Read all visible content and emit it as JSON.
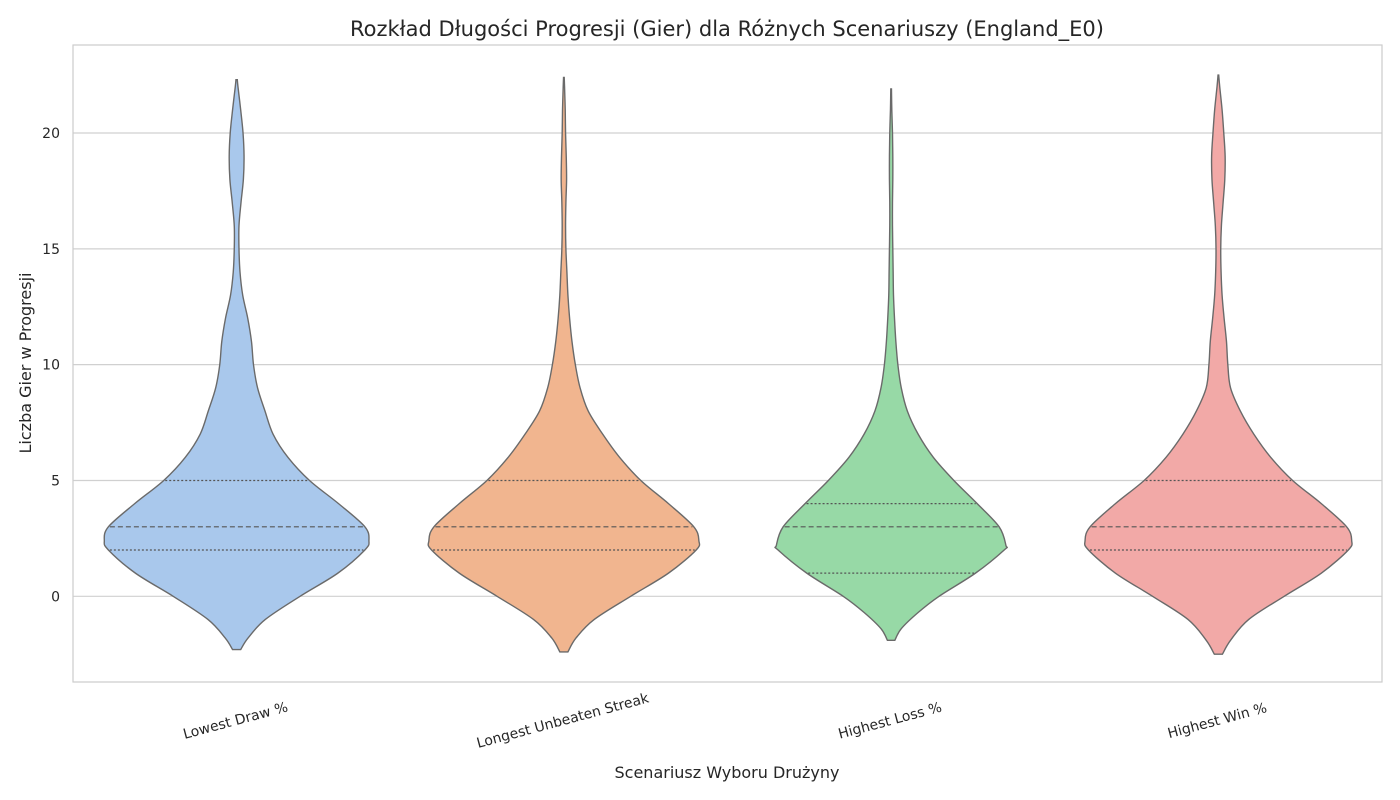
{
  "chart_data": {
    "type": "violin",
    "title": "Rozkład Długości Progresji (Gier) dla Różnych Scenariuszy (England_E0)",
    "xlabel": "Scenariusz Wyboru Drużyny",
    "ylabel": "Liczba Gier w Progresji",
    "ylim": [
      -3.7,
      23.8
    ],
    "yticks": [
      0,
      5,
      10,
      15,
      20
    ],
    "grid": "horizontal",
    "categories": [
      "Lowest Draw %",
      "Longest Unbeaten Streak",
      "Highest Loss %",
      "Highest Win %"
    ],
    "colors": [
      "#a9c8ec",
      "#f1b58f",
      "#97d9a6",
      "#f2a9a7"
    ],
    "series": [
      {
        "category": "Lowest Draw %",
        "min": -2.3,
        "max": 22.3,
        "q1": 2,
        "median": 3,
        "q3": 5,
        "density": [
          [
            -2.3,
            0.12
          ],
          [
            -1.8,
            0.34
          ],
          [
            -1.0,
            0.85
          ],
          [
            0,
            1.88
          ],
          [
            1,
            3.0
          ],
          [
            2,
            3.8
          ],
          [
            2.4,
            3.92
          ],
          [
            3,
            3.8
          ],
          [
            4,
            3.02
          ],
          [
            5,
            2.16
          ],
          [
            6,
            1.52
          ],
          [
            7,
            1.08
          ],
          [
            8,
            0.84
          ],
          [
            9,
            0.62
          ],
          [
            10,
            0.5
          ],
          [
            11,
            0.44
          ],
          [
            12,
            0.33
          ],
          [
            13,
            0.18
          ],
          [
            14,
            0.1
          ],
          [
            15,
            0.07
          ],
          [
            16,
            0.07
          ],
          [
            17,
            0.13
          ],
          [
            18,
            0.2
          ],
          [
            19,
            0.22
          ],
          [
            20,
            0.19
          ],
          [
            21,
            0.12
          ],
          [
            22,
            0.04
          ],
          [
            22.3,
            0.02
          ]
        ]
      },
      {
        "category": "Longest Unbeaten Streak",
        "min": -2.4,
        "max": 22.4,
        "q1": 2,
        "median": 3,
        "q3": 5,
        "density": [
          [
            -2.4,
            0.12
          ],
          [
            -1.8,
            0.36
          ],
          [
            -1.0,
            0.9
          ],
          [
            0,
            1.98
          ],
          [
            1,
            3.1
          ],
          [
            2,
            3.92
          ],
          [
            2.4,
            4.0
          ],
          [
            3,
            3.85
          ],
          [
            4,
            3.1
          ],
          [
            5,
            2.28
          ],
          [
            6,
            1.65
          ],
          [
            7,
            1.15
          ],
          [
            8,
            0.72
          ],
          [
            9,
            0.48
          ],
          [
            10,
            0.34
          ],
          [
            11,
            0.24
          ],
          [
            12,
            0.17
          ],
          [
            13,
            0.12
          ],
          [
            14,
            0.09
          ],
          [
            15,
            0.06
          ],
          [
            16,
            0.05
          ],
          [
            17,
            0.06
          ],
          [
            18,
            0.08
          ],
          [
            19,
            0.07
          ],
          [
            20,
            0.05
          ],
          [
            21,
            0.04
          ],
          [
            22,
            0.02
          ],
          [
            22.4,
            0.01
          ]
        ]
      },
      {
        "category": "Highest Loss %",
        "min": -1.9,
        "max": 21.9,
        "q1": 1,
        "median": 3,
        "q3": 4,
        "density": [
          [
            -1.9,
            0.11
          ],
          [
            -1.4,
            0.3
          ],
          [
            -0.7,
            0.8
          ],
          [
            0,
            1.42
          ],
          [
            1,
            2.5
          ],
          [
            2,
            3.35
          ],
          [
            2.2,
            3.4
          ],
          [
            3,
            3.2
          ],
          [
            4,
            2.55
          ],
          [
            5,
            1.86
          ],
          [
            6,
            1.25
          ],
          [
            7,
            0.8
          ],
          [
            8,
            0.48
          ],
          [
            9,
            0.3
          ],
          [
            10,
            0.2
          ],
          [
            11,
            0.14
          ],
          [
            12,
            0.1
          ],
          [
            13,
            0.07
          ],
          [
            14,
            0.06
          ],
          [
            15,
            0.05
          ],
          [
            16,
            0.04
          ],
          [
            17,
            0.04
          ],
          [
            18,
            0.05
          ],
          [
            19,
            0.05
          ],
          [
            20,
            0.04
          ],
          [
            21,
            0.02
          ],
          [
            21.9,
            0.01
          ]
        ]
      },
      {
        "category": "Highest Win %",
        "min": -2.5,
        "max": 22.5,
        "q1": 2,
        "median": 3,
        "q3": 5,
        "density": [
          [
            -2.5,
            0.12
          ],
          [
            -1.9,
            0.36
          ],
          [
            -1.0,
            0.9
          ],
          [
            0,
            1.95
          ],
          [
            1,
            3.05
          ],
          [
            2,
            3.85
          ],
          [
            2.4,
            3.95
          ],
          [
            3,
            3.8
          ],
          [
            4,
            3.05
          ],
          [
            5,
            2.2
          ],
          [
            6,
            1.55
          ],
          [
            7,
            1.05
          ],
          [
            8,
            0.65
          ],
          [
            9,
            0.36
          ],
          [
            10,
            0.28
          ],
          [
            11,
            0.24
          ],
          [
            12,
            0.17
          ],
          [
            13,
            0.11
          ],
          [
            14,
            0.08
          ],
          [
            15,
            0.07
          ],
          [
            16,
            0.09
          ],
          [
            17,
            0.14
          ],
          [
            18,
            0.19
          ],
          [
            19,
            0.2
          ],
          [
            20,
            0.16
          ],
          [
            21,
            0.11
          ],
          [
            22,
            0.04
          ],
          [
            22.5,
            0.01
          ]
        ]
      }
    ]
  }
}
